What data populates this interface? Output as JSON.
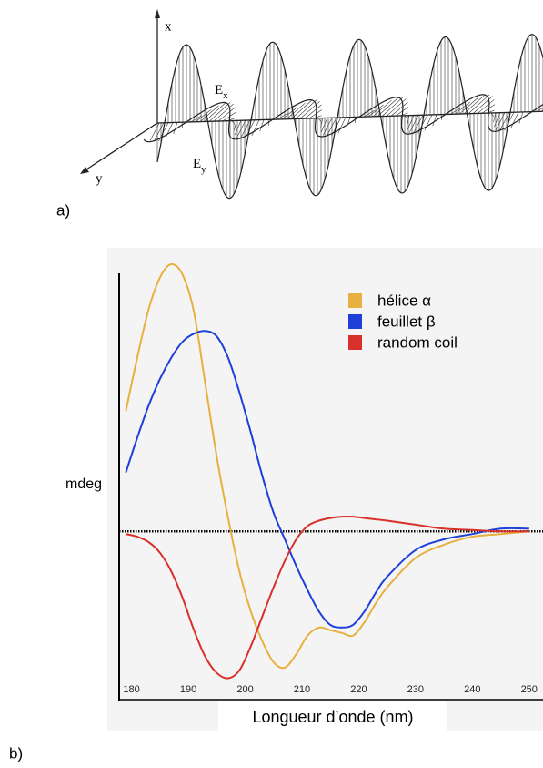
{
  "panels": {
    "a": "a)",
    "b": "b)"
  },
  "diagram": {
    "axis_x": "x",
    "axis_y": "y",
    "field_x": {
      "symbol": "E",
      "subscript": "x"
    },
    "field_y": {
      "symbol": "E",
      "subscript": "y"
    }
  },
  "chart_data": {
    "type": "line",
    "y_label": "mdeg",
    "x_label": "Longueur d’onde (nm)",
    "x": [
      179,
      181,
      183,
      185,
      187,
      189,
      191,
      193,
      195,
      197,
      199,
      201,
      203,
      205,
      207,
      209,
      211,
      213,
      215,
      217,
      219,
      221,
      223,
      225,
      230,
      235,
      240,
      245,
      250
    ],
    "series": [
      {
        "name": "hélice α",
        "color": "#e8b040",
        "values": [
          45,
          65,
          83,
          95,
          100,
          96,
          82,
          55,
          28,
          5,
          -15,
          -30,
          -41,
          -49,
          -51,
          -46,
          -39,
          -36,
          -37,
          -38,
          -39,
          -34,
          -27,
          -21,
          -10,
          -5,
          -2,
          -1,
          0
        ]
      },
      {
        "name": "feuillet β",
        "color": "#1f3fd8",
        "values": [
          22,
          35,
          47,
          57,
          65,
          71,
          74,
          75,
          73,
          65,
          52,
          37,
          21,
          7,
          -3,
          -13,
          -22,
          -30,
          -35,
          -36,
          -35,
          -30,
          -23,
          -17,
          -7,
          -3,
          -1,
          1,
          1
        ]
      },
      {
        "name": "random coil",
        "color": "#d8302a",
        "values": [
          -1,
          -2,
          -4,
          -8,
          -15,
          -25,
          -37,
          -47,
          -53,
          -55,
          -52,
          -43,
          -32,
          -21,
          -11,
          -3,
          2,
          4,
          5,
          5.5,
          5.5,
          5,
          4.5,
          4,
          2.5,
          1,
          0.5,
          0,
          0
        ]
      }
    ],
    "xlim": [
      177.5,
      251
    ],
    "ylim": [
      -63,
      100
    ],
    "xticks": [
      180,
      190,
      200,
      210,
      220,
      230,
      240,
      250
    ],
    "zero_line": true,
    "legend": "upper right",
    "grid": false
  }
}
